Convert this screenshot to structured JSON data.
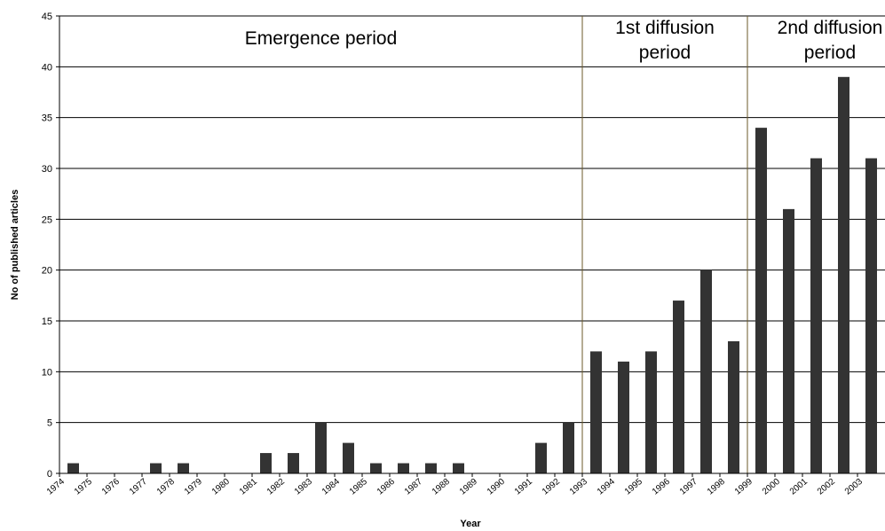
{
  "chart_data": {
    "type": "bar",
    "x_label": "Year",
    "y_label": "No of published articles",
    "annotations": [
      [
        "Emergence period"
      ],
      [
        "1st diffusion",
        "period"
      ],
      [
        "2nd diffusion",
        "period"
      ]
    ],
    "categories": [
      "1974",
      "1975",
      "1976",
      "1977",
      "1978",
      "1979",
      "1980",
      "1981",
      "1982",
      "1983",
      "1984",
      "1985",
      "1986",
      "1987",
      "1988",
      "1989",
      "1990",
      "1991",
      "1992",
      "1993",
      "1994",
      "1995",
      "1996",
      "1997",
      "1998",
      "1999",
      "2000",
      "2001",
      "2002",
      "2003"
    ],
    "values": [
      1,
      0,
      0,
      1,
      1,
      0,
      0,
      2,
      2,
      5,
      3,
      1,
      1,
      1,
      1,
      0,
      0,
      3,
      5,
      12,
      11,
      12,
      17,
      20,
      13,
      34,
      26,
      31,
      39,
      31
    ],
    "color": "#333333",
    "ylim": [
      0,
      45
    ],
    "yticks": [
      0,
      5,
      10,
      15,
      20,
      25,
      30,
      35,
      40,
      45
    ],
    "grid": true
  }
}
